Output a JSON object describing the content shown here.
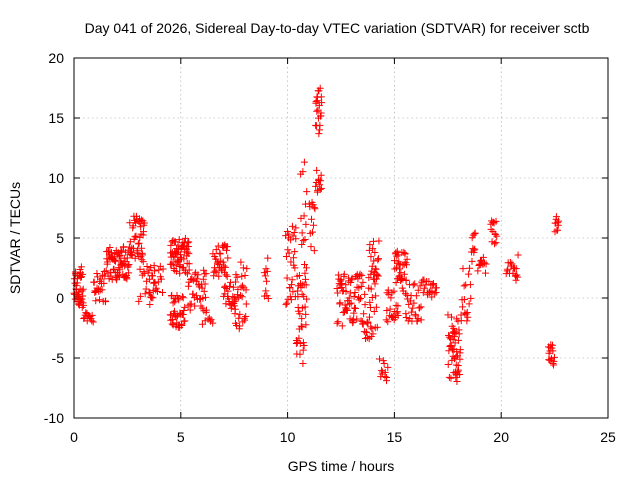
{
  "chart_data": {
    "type": "scatter",
    "title": "Day 041 of 2026, Sidereal Day-to-day VTEC variation (SDTVAR) for receiver sctb",
    "xlabel": "GPS time / hours",
    "ylabel": "SDTVAR / TECUs",
    "xlim": [
      0,
      25
    ],
    "ylim": [
      -10,
      20
    ],
    "xticks": [
      0,
      5,
      10,
      15,
      20,
      25
    ],
    "yticks": [
      -10,
      -5,
      0,
      5,
      10,
      15,
      20
    ],
    "grid": true,
    "marker": "+",
    "color": "#ff0000",
    "clusters": [
      {
        "x0": 0.0,
        "x1": 0.45,
        "ylo": -0.8,
        "yhi": 2.8,
        "n": 40
      },
      {
        "x0": 0.45,
        "x1": 0.9,
        "ylo": -2.0,
        "yhi": -1.2,
        "n": 14
      },
      {
        "x0": 0.9,
        "x1": 1.5,
        "ylo": -0.3,
        "yhi": 2.5,
        "n": 24
      },
      {
        "x0": 1.5,
        "x1": 2.6,
        "ylo": 1.5,
        "yhi": 4.3,
        "n": 70
      },
      {
        "x0": 2.6,
        "x1": 3.3,
        "ylo": 3.0,
        "yhi": 7.0,
        "n": 40
      },
      {
        "x0": 3.0,
        "x1": 3.8,
        "ylo": -0.5,
        "yhi": 3.5,
        "n": 25
      },
      {
        "x0": 3.5,
        "x1": 4.2,
        "ylo": -1.0,
        "yhi": 3.0,
        "n": 18
      },
      {
        "x0": 4.5,
        "x1": 5.4,
        "ylo": 2.0,
        "yhi": 5.0,
        "n": 60
      },
      {
        "x0": 4.5,
        "x1": 5.2,
        "ylo": -2.5,
        "yhi": 0.5,
        "n": 40
      },
      {
        "x0": 5.3,
        "x1": 6.2,
        "ylo": -1.0,
        "yhi": 2.5,
        "n": 40
      },
      {
        "x0": 6.0,
        "x1": 6.5,
        "ylo": -2.2,
        "yhi": -1.0,
        "n": 10
      },
      {
        "x0": 6.5,
        "x1": 7.2,
        "ylo": 1.5,
        "yhi": 4.5,
        "n": 35
      },
      {
        "x0": 7.0,
        "x1": 7.6,
        "ylo": -1.0,
        "yhi": 2.0,
        "n": 24
      },
      {
        "x0": 7.5,
        "x1": 8.1,
        "ylo": -2.8,
        "yhi": 3.0,
        "n": 30
      },
      {
        "x0": 8.9,
        "x1": 9.1,
        "ylo": -2.2,
        "yhi": 4.6,
        "n": 10
      },
      {
        "x0": 9.9,
        "x1": 10.4,
        "ylo": -1.0,
        "yhi": 6.0,
        "n": 30
      },
      {
        "x0": 10.4,
        "x1": 10.9,
        "ylo": -5.5,
        "yhi": 3.0,
        "n": 40
      },
      {
        "x0": 10.6,
        "x1": 10.9,
        "ylo": 4.0,
        "yhi": 11.5,
        "n": 12
      },
      {
        "x0": 11.0,
        "x1": 11.3,
        "ylo": 1.0,
        "yhi": 8.0,
        "n": 12
      },
      {
        "x0": 11.3,
        "x1": 11.6,
        "ylo": 13.5,
        "yhi": 17.6,
        "n": 22
      },
      {
        "x0": 11.3,
        "x1": 11.6,
        "ylo": 8.8,
        "yhi": 11.0,
        "n": 12
      },
      {
        "x0": 12.3,
        "x1": 13.2,
        "ylo": -2.5,
        "yhi": 2.0,
        "n": 50
      },
      {
        "x0": 13.2,
        "x1": 14.2,
        "ylo": -3.5,
        "yhi": 2.0,
        "n": 50
      },
      {
        "x0": 13.8,
        "x1": 14.3,
        "ylo": 1.5,
        "yhi": 4.8,
        "n": 20
      },
      {
        "x0": 14.3,
        "x1": 14.7,
        "ylo": -7.0,
        "yhi": -5.0,
        "n": 12
      },
      {
        "x0": 14.6,
        "x1": 15.2,
        "ylo": -2.0,
        "yhi": 1.0,
        "n": 22
      },
      {
        "x0": 15.0,
        "x1": 15.6,
        "ylo": 0.5,
        "yhi": 4.0,
        "n": 35
      },
      {
        "x0": 15.5,
        "x1": 16.3,
        "ylo": -2.0,
        "yhi": 1.5,
        "n": 30
      },
      {
        "x0": 16.3,
        "x1": 17.0,
        "ylo": 0.0,
        "yhi": 1.5,
        "n": 20
      },
      {
        "x0": 17.5,
        "x1": 18.1,
        "ylo": -7.0,
        "yhi": -1.0,
        "n": 40
      },
      {
        "x0": 17.7,
        "x1": 18.0,
        "ylo": -5.0,
        "yhi": -2.5,
        "n": 10
      },
      {
        "x0": 18.1,
        "x1": 18.6,
        "ylo": -3.0,
        "yhi": 2.6,
        "n": 18
      },
      {
        "x0": 18.6,
        "x1": 18.8,
        "ylo": 3.0,
        "yhi": 5.8,
        "n": 10
      },
      {
        "x0": 18.9,
        "x1": 19.3,
        "ylo": 2.0,
        "yhi": 3.5,
        "n": 12
      },
      {
        "x0": 19.5,
        "x1": 19.8,
        "ylo": 4.5,
        "yhi": 6.5,
        "n": 14
      },
      {
        "x0": 20.2,
        "x1": 20.6,
        "ylo": 2.0,
        "yhi": 3.0,
        "n": 10
      },
      {
        "x0": 20.6,
        "x1": 20.8,
        "ylo": 1.0,
        "yhi": 3.7,
        "n": 8
      },
      {
        "x0": 22.2,
        "x1": 22.5,
        "ylo": -6.2,
        "yhi": -3.5,
        "n": 16
      },
      {
        "x0": 22.5,
        "x1": 22.7,
        "ylo": 5.5,
        "yhi": 6.8,
        "n": 10
      }
    ]
  }
}
